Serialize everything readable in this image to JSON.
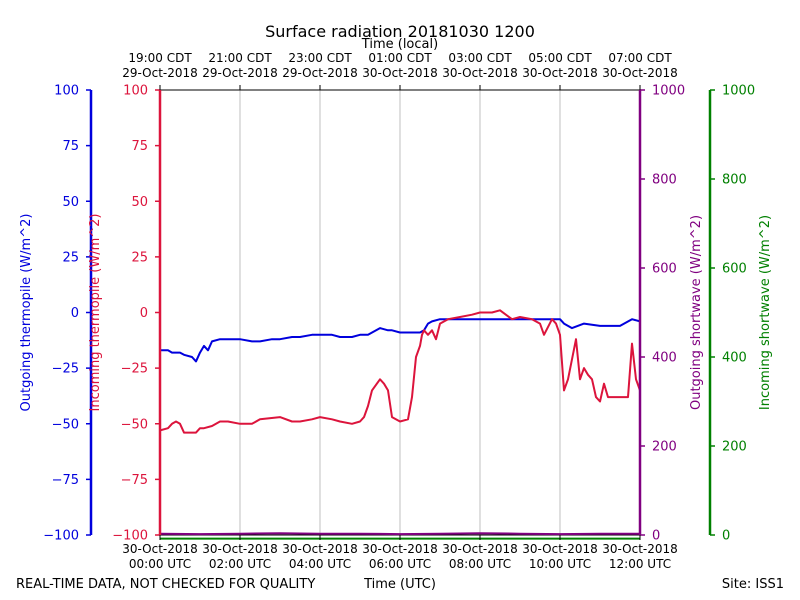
{
  "chart_data": {
    "type": "line",
    "title": "Surface radiation 20181030 1200",
    "xlabel_top": "Time (local)",
    "xlabel_bottom": "Time (UTC)",
    "footer_left": "REAL-TIME DATA, NOT CHECKED FOR QUALITY",
    "footer_right": "Site: ISS1",
    "xlim": [
      0,
      12
    ],
    "grid_x": true,
    "x_ticks_bottom": [
      {
        "x": 0,
        "line1": "30-Oct-2018",
        "line2": "00:00 UTC"
      },
      {
        "x": 2,
        "line1": "30-Oct-2018",
        "line2": "02:00 UTC"
      },
      {
        "x": 4,
        "line1": "30-Oct-2018",
        "line2": "04:00 UTC"
      },
      {
        "x": 6,
        "line1": "30-Oct-2018",
        "line2": "06:00 UTC"
      },
      {
        "x": 8,
        "line1": "30-Oct-2018",
        "line2": "08:00 UTC"
      },
      {
        "x": 10,
        "line1": "30-Oct-2018",
        "line2": "10:00 UTC"
      },
      {
        "x": 12,
        "line1": "30-Oct-2018",
        "line2": "12:00 UTC"
      }
    ],
    "x_ticks_top": [
      {
        "x": 0,
        "line1": "19:00 CDT",
        "line2": "29-Oct-2018"
      },
      {
        "x": 2,
        "line1": "21:00 CDT",
        "line2": "29-Oct-2018"
      },
      {
        "x": 4,
        "line1": "23:00 CDT",
        "line2": "29-Oct-2018"
      },
      {
        "x": 6,
        "line1": "01:00 CDT",
        "line2": "30-Oct-2018"
      },
      {
        "x": 8,
        "line1": "03:00 CDT",
        "line2": "30-Oct-2018"
      },
      {
        "x": 10,
        "line1": "05:00 CDT",
        "line2": "30-Oct-2018"
      },
      {
        "x": 12,
        "line1": "07:00 CDT",
        "line2": "30-Oct-2018"
      }
    ],
    "axes": {
      "outgoing_thermopile": {
        "label": "Outgoing thermopile (W/m^2)",
        "ylim": [
          -100,
          100
        ],
        "ticks": [
          100,
          75,
          50,
          25,
          0,
          -25,
          -50,
          -75,
          -100
        ],
        "color": "#0000dd"
      },
      "incoming_thermopile": {
        "label": "Incoming thermopile (W/m^2)",
        "ylim": [
          -100,
          100
        ],
        "ticks": [
          100,
          75,
          50,
          25,
          0,
          -25,
          -50,
          -75,
          -100
        ],
        "color": "#dc143c"
      },
      "outgoing_shortwave": {
        "label": "Outgoing shortwave (W/m^2)",
        "ylim": [
          0,
          1000
        ],
        "ticks": [
          1000,
          800,
          600,
          400,
          200,
          0
        ],
        "color": "#800080"
      },
      "incoming_shortwave": {
        "label": "Incoming shortwave (W/m^2)",
        "ylim": [
          0,
          1000
        ],
        "ticks": [
          1000,
          800,
          600,
          400,
          200,
          0
        ],
        "color": "#008000"
      }
    },
    "series": [
      {
        "axis": "outgoing_thermopile",
        "color": "#0000dd",
        "x": [
          0,
          0.2,
          0.3,
          0.5,
          0.6,
          0.8,
          0.9,
          1.0,
          1.1,
          1.2,
          1.3,
          1.5,
          1.7,
          2.0,
          2.3,
          2.5,
          2.8,
          3.0,
          3.3,
          3.5,
          3.8,
          4.0,
          4.3,
          4.5,
          4.8,
          5.0,
          5.2,
          5.5,
          5.7,
          5.8,
          6.0,
          6.3,
          6.5,
          6.6,
          6.7,
          6.8,
          7.0,
          7.5,
          8.0,
          8.5,
          9.0,
          9.5,
          9.8,
          10.0,
          10.1,
          10.3,
          10.6,
          11.0,
          11.5,
          11.8,
          12.0
        ],
        "values": [
          -17,
          -17,
          -18,
          -18,
          -19,
          -20,
          -22,
          -18,
          -15,
          -17,
          -13,
          -12,
          -12,
          -12,
          -13,
          -13,
          -12,
          -12,
          -11,
          -11,
          -10,
          -10,
          -10,
          -11,
          -11,
          -10,
          -10,
          -7,
          -8,
          -8,
          -9,
          -9,
          -9,
          -8,
          -5,
          -4,
          -3,
          -3,
          -3,
          -3,
          -3,
          -3,
          -3,
          -3,
          -5,
          -7,
          -5,
          -6,
          -6,
          -3,
          -4
        ]
      },
      {
        "axis": "incoming_thermopile",
        "color": "#dc143c",
        "x": [
          0,
          0.2,
          0.3,
          0.4,
          0.5,
          0.6,
          0.9,
          1.0,
          1.1,
          1.3,
          1.5,
          1.7,
          2.0,
          2.3,
          2.5,
          3.0,
          3.3,
          3.5,
          3.8,
          4.0,
          4.3,
          4.5,
          4.8,
          5.0,
          5.1,
          5.2,
          5.3,
          5.5,
          5.6,
          5.7,
          5.8,
          6.0,
          6.2,
          6.3,
          6.4,
          6.5,
          6.55,
          6.6,
          6.7,
          6.8,
          6.9,
          7.0,
          7.2,
          7.5,
          7.8,
          8.0,
          8.3,
          8.5,
          8.8,
          9.0,
          9.3,
          9.5,
          9.6,
          9.8,
          9.9,
          10.0,
          10.1,
          10.2,
          10.4,
          10.5,
          10.6,
          10.7,
          10.8,
          10.9,
          11.0,
          11.1,
          11.2,
          11.3,
          11.5,
          11.7,
          11.8,
          11.9,
          12.0
        ],
        "values": [
          -53,
          -52,
          -50,
          -49,
          -50,
          -54,
          -54,
          -52,
          -52,
          -51,
          -49,
          -49,
          -50,
          -50,
          -48,
          -47,
          -49,
          -49,
          -48,
          -47,
          -48,
          -49,
          -50,
          -49,
          -47,
          -42,
          -35,
          -30,
          -32,
          -35,
          -47,
          -49,
          -48,
          -38,
          -20,
          -15,
          -10,
          -8,
          -10,
          -8,
          -12,
          -5,
          -3,
          -2,
          -1,
          0,
          0,
          1,
          -3,
          -2,
          -3,
          -5,
          -10,
          -3,
          -5,
          -10,
          -35,
          -30,
          -12,
          -30,
          -25,
          -28,
          -30,
          -38,
          -40,
          -32,
          -38,
          -38,
          -38,
          -38,
          -14,
          -30,
          -35
        ]
      },
      {
        "axis": "outgoing_shortwave",
        "color": "#800080",
        "x": [
          0,
          1,
          2,
          3,
          4,
          5,
          6,
          7,
          8,
          9,
          10,
          11,
          12
        ],
        "values": [
          3,
          2,
          3,
          4,
          3,
          3,
          2,
          3,
          4,
          3,
          2,
          3,
          3
        ]
      },
      {
        "axis": "incoming_shortwave",
        "color": "#008000",
        "x": [
          0,
          2,
          4,
          6,
          8,
          10,
          12
        ],
        "values": [
          -8,
          -8,
          -8,
          -8,
          -8,
          -8,
          -8
        ]
      }
    ]
  }
}
